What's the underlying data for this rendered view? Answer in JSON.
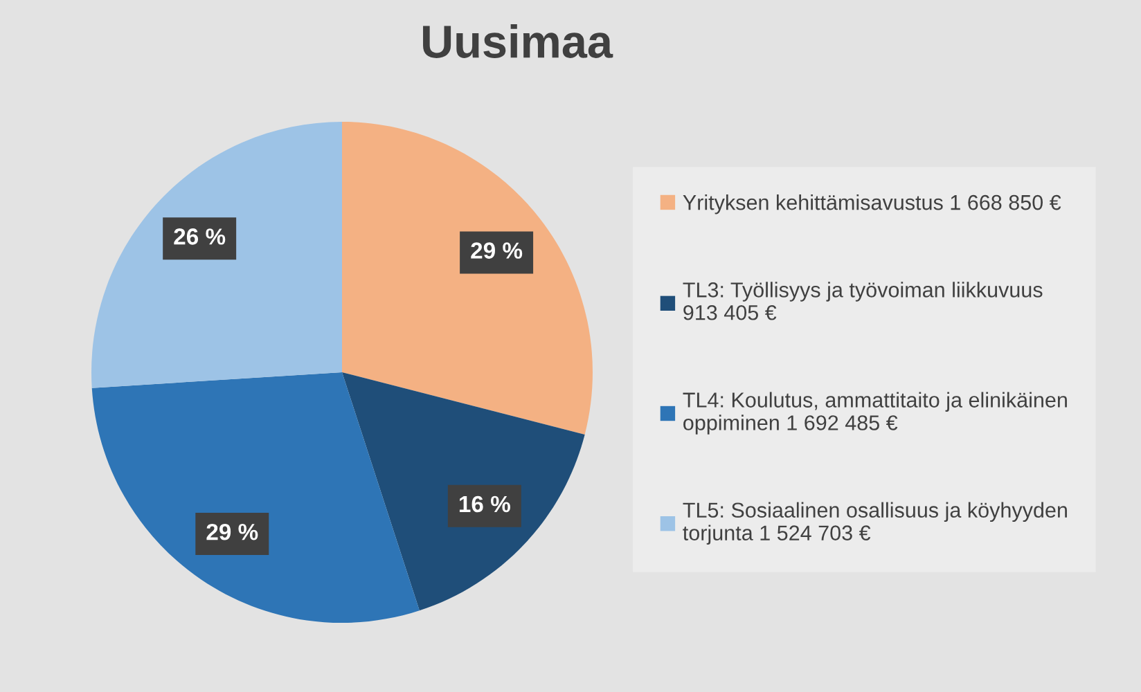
{
  "chart_data": {
    "type": "pie",
    "title": "Uusimaa",
    "categories": [
      "Yrityksen kehittämisavustus 1 668 850 €",
      "TL3: Työllisyys ja työvoiman liikkuvuus 913 405 €",
      "TL4: Koulutus, ammattitaito ja elinikäinen oppiminen 1 692 485 €",
      "TL5: Sosiaalinen osallisuus ja köyhyyden torjunta 1 524 703 €"
    ],
    "values": [
      29,
      16,
      29,
      26
    ],
    "colors": [
      "#f4b183",
      "#1f4e79",
      "#2e75b6",
      "#9dc3e6"
    ],
    "value_labels": [
      "29 %",
      "16 %",
      "29 %",
      "26 %"
    ],
    "legend": "right"
  }
}
